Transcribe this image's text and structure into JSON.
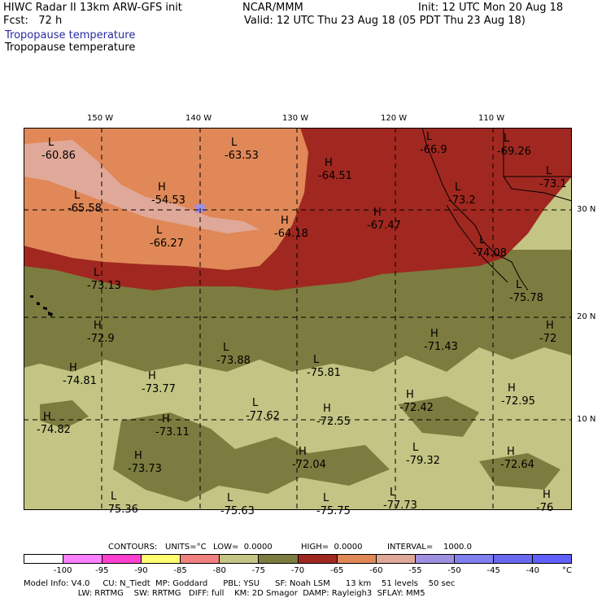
{
  "header": {
    "line1_left": "HIWC Radar II 13km ARW-GFS init",
    "line1_mid": "NCAR/MMM",
    "line1_right": "Init: 12 UTC Mon 20 Aug 18",
    "line2_left": "Fcst:   72 h",
    "line2_right": "Valid: 12 UTC Thu 23 Aug 18 (05 PDT Thu 23 Aug 18)",
    "field_title_blue": "Tropopause temperature",
    "field_title_black": "Tropopause temperature"
  },
  "map": {
    "lon_labels": [
      "150 W",
      "140 W",
      "130 W",
      "120 W",
      "110 W"
    ],
    "lat_labels": [
      "30 N",
      "20 N",
      "10 N"
    ],
    "extrema": [
      {
        "type": "L",
        "value": "-60.86"
      },
      {
        "type": "L",
        "value": "-63.53"
      },
      {
        "type": "H",
        "value": "-64.51"
      },
      {
        "type": "L",
        "value": "-66.9"
      },
      {
        "type": "L",
        "value": "-69.26"
      },
      {
        "type": "L",
        "value": "-73.1"
      },
      {
        "type": "H",
        "value": "-54.53"
      },
      {
        "type": "L",
        "value": "-65.58"
      },
      {
        "type": "L",
        "value": "-66.27"
      },
      {
        "type": "H",
        "value": "-64.18"
      },
      {
        "type": "H",
        "value": "-67.47"
      },
      {
        "type": "L",
        "value": "-73.2"
      },
      {
        "type": "L",
        "value": "-74.08"
      },
      {
        "type": "L",
        "value": "-73.13"
      },
      {
        "type": "L",
        "value": "-75.78"
      },
      {
        "type": "H",
        "value": "-72.9"
      },
      {
        "type": "H",
        "value": "-72"
      },
      {
        "type": "H",
        "value": "-71.43"
      },
      {
        "type": "L",
        "value": "-73.88"
      },
      {
        "type": "L",
        "value": "-75.81"
      },
      {
        "type": "H",
        "value": "-74.81"
      },
      {
        "type": "H",
        "value": "-73.77"
      },
      {
        "type": "H",
        "value": "-72.95"
      },
      {
        "type": "L",
        "value": "-77.62"
      },
      {
        "type": "H",
        "value": "-72.55"
      },
      {
        "type": "H",
        "value": "-72.42"
      },
      {
        "type": "H",
        "value": "-74.82"
      },
      {
        "type": "H",
        "value": "-73.11"
      },
      {
        "type": "L",
        "value": "-79.32"
      },
      {
        "type": "H",
        "value": "-73.73"
      },
      {
        "type": "H",
        "value": "-72.04"
      },
      {
        "type": "H",
        "value": "-72.64"
      },
      {
        "type": "L",
        "value": "-75.36"
      },
      {
        "type": "L",
        "value": "-75.63"
      },
      {
        "type": "L",
        "value": "-75.75"
      },
      {
        "type": "L",
        "value": "-77.73"
      },
      {
        "type": "H",
        "value": "-76"
      }
    ]
  },
  "contour_info": {
    "contours": "CONTOURS:",
    "units": "UNITS=°C",
    "low": "LOW=  0.0000",
    "high": "HIGH=  0.0000",
    "interval": "INTERVAL=    1000.0"
  },
  "colorbar": {
    "colors": [
      "#ffffff",
      "#ff80ff",
      "#ff40d0",
      "#ffff70",
      "#f08080",
      "#c4c484",
      "#7c7c40",
      "#a02820",
      "#e08858",
      "#e0a898",
      "#a090e0",
      "#8080f0",
      "#6868f0",
      "#6060ff"
    ],
    "labels": [
      "-100",
      "-95",
      "-90",
      "-85",
      "-80",
      "-75",
      "-70",
      "-65",
      "-60",
      "-55",
      "-50",
      "-45",
      "-40"
    ],
    "unit": "°C"
  },
  "model_info": {
    "line1": "Model Info: V4.0     CU: N_Tiedt  MP: Goddard      PBL: YSU      SF: Noah LSM      13 km    51 levels    50 sec",
    "line2": "                     LW: RRTMG    SW: RRTMG   DIFF: full    KM: 2D Smagor  DAMP: Rayleigh3  SFLAY: MM5"
  }
}
